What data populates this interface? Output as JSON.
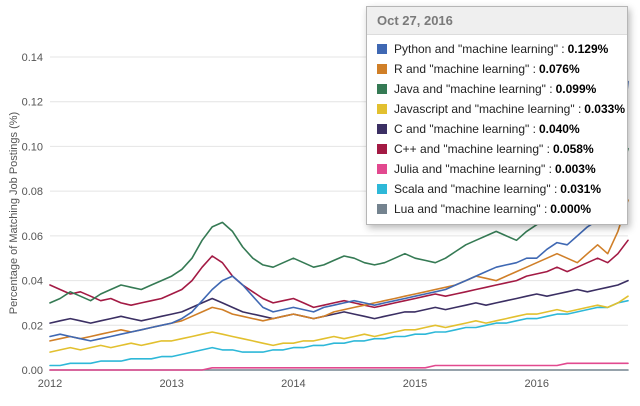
{
  "tooltip": {
    "date": "Oct 27, 2016",
    "rows": [
      {
        "label": "Python and \"machine learning\"",
        "value": "0.129%",
        "color": "#3f68b3"
      },
      {
        "label": "R and \"machine learning\"",
        "value": "0.076%",
        "color": "#d07f28"
      },
      {
        "label": "Java and \"machine learning\"",
        "value": "0.099%",
        "color": "#357a54"
      },
      {
        "label": "Javascript and \"machine learning\"",
        "value": "0.033%",
        "color": "#e2c02f"
      },
      {
        "label": "C and \"machine learning\"",
        "value": "0.040%",
        "color": "#3b2f63"
      },
      {
        "label": "C++ and \"machine learning\"",
        "value": "0.058%",
        "color": "#a31a44"
      },
      {
        "label": "Julia and \"machine learning\"",
        "value": "0.003%",
        "color": "#e2498f"
      },
      {
        "label": "Scala and \"machine learning\"",
        "value": "0.031%",
        "color": "#2eb8d8"
      },
      {
        "label": "Lua and \"machine learning\"",
        "value": "0.000%",
        "color": "#74838f"
      }
    ]
  },
  "chart_data": {
    "type": "line",
    "title": "",
    "xlabel": "",
    "ylabel": "Percentage of Matching Job Postings (%)",
    "ylim": [
      0,
      0.14
    ],
    "grid": "horizontal",
    "legend_position": "tooltip-top-right",
    "x_range_note": "monthly points, Jan 2012 through Oct 2016 (58 points)",
    "y_tick_values": [
      0,
      0.02,
      0.04,
      0.06,
      0.08,
      0.1,
      0.12,
      0.14
    ],
    "y_tick_labels": [
      "0.00",
      "0.02",
      "0.04",
      "0.06",
      "0.08",
      "0.10",
      "0.12",
      "0.14"
    ],
    "x_tick_month_index": [
      0,
      12,
      24,
      36,
      48
    ],
    "x_tick_labels": [
      "2012",
      "2013",
      "2014",
      "2015",
      "2016"
    ],
    "series": [
      {
        "name": "Python and \"machine learning\"",
        "color": "#3f68b3",
        "values": [
          0.015,
          0.016,
          0.015,
          0.014,
          0.013,
          0.014,
          0.015,
          0.016,
          0.017,
          0.018,
          0.019,
          0.02,
          0.021,
          0.023,
          0.026,
          0.031,
          0.036,
          0.04,
          0.042,
          0.038,
          0.033,
          0.028,
          0.026,
          0.027,
          0.028,
          0.027,
          0.026,
          0.028,
          0.029,
          0.03,
          0.031,
          0.03,
          0.029,
          0.03,
          0.031,
          0.032,
          0.033,
          0.034,
          0.035,
          0.036,
          0.038,
          0.04,
          0.042,
          0.044,
          0.046,
          0.047,
          0.048,
          0.05,
          0.05,
          0.054,
          0.057,
          0.056,
          0.06,
          0.064,
          0.067,
          0.071,
          0.085,
          0.129
        ]
      },
      {
        "name": "R and \"machine learning\"",
        "color": "#d07f28",
        "values": [
          0.013,
          0.014,
          0.015,
          0.014,
          0.015,
          0.016,
          0.017,
          0.018,
          0.017,
          0.018,
          0.019,
          0.02,
          0.021,
          0.022,
          0.024,
          0.026,
          0.028,
          0.027,
          0.025,
          0.024,
          0.023,
          0.022,
          0.023,
          0.024,
          0.025,
          0.024,
          0.023,
          0.024,
          0.026,
          0.027,
          0.028,
          0.029,
          0.03,
          0.031,
          0.032,
          0.033,
          0.034,
          0.035,
          0.036,
          0.037,
          0.038,
          0.04,
          0.042,
          0.041,
          0.04,
          0.042,
          0.044,
          0.046,
          0.048,
          0.05,
          0.052,
          0.05,
          0.048,
          0.052,
          0.056,
          0.052,
          0.062,
          0.076
        ]
      },
      {
        "name": "Java and \"machine learning\"",
        "color": "#357a54",
        "values": [
          0.03,
          0.032,
          0.035,
          0.033,
          0.031,
          0.034,
          0.036,
          0.038,
          0.037,
          0.036,
          0.038,
          0.04,
          0.042,
          0.045,
          0.05,
          0.058,
          0.064,
          0.066,
          0.062,
          0.055,
          0.05,
          0.047,
          0.046,
          0.048,
          0.05,
          0.048,
          0.046,
          0.047,
          0.049,
          0.051,
          0.05,
          0.048,
          0.047,
          0.048,
          0.05,
          0.052,
          0.05,
          0.049,
          0.048,
          0.05,
          0.053,
          0.056,
          0.058,
          0.06,
          0.062,
          0.06,
          0.058,
          0.062,
          0.065,
          0.068,
          0.072,
          0.07,
          0.068,
          0.072,
          0.076,
          0.074,
          0.082,
          0.099
        ]
      },
      {
        "name": "Javascript and \"machine learning\"",
        "color": "#e2c02f",
        "values": [
          0.008,
          0.009,
          0.01,
          0.009,
          0.01,
          0.011,
          0.01,
          0.011,
          0.012,
          0.011,
          0.012,
          0.013,
          0.013,
          0.014,
          0.015,
          0.016,
          0.017,
          0.016,
          0.015,
          0.014,
          0.013,
          0.012,
          0.011,
          0.012,
          0.012,
          0.013,
          0.013,
          0.014,
          0.015,
          0.014,
          0.015,
          0.016,
          0.015,
          0.016,
          0.017,
          0.018,
          0.018,
          0.019,
          0.02,
          0.019,
          0.02,
          0.021,
          0.022,
          0.021,
          0.022,
          0.023,
          0.024,
          0.025,
          0.025,
          0.026,
          0.027,
          0.026,
          0.027,
          0.028,
          0.029,
          0.028,
          0.03,
          0.033
        ]
      },
      {
        "name": "C and \"machine learning\"",
        "color": "#3b2f63",
        "values": [
          0.021,
          0.022,
          0.023,
          0.022,
          0.021,
          0.022,
          0.023,
          0.024,
          0.023,
          0.022,
          0.023,
          0.024,
          0.025,
          0.026,
          0.028,
          0.03,
          0.032,
          0.03,
          0.028,
          0.026,
          0.025,
          0.024,
          0.023,
          0.024,
          0.025,
          0.024,
          0.023,
          0.024,
          0.025,
          0.026,
          0.025,
          0.024,
          0.023,
          0.024,
          0.025,
          0.026,
          0.026,
          0.027,
          0.028,
          0.027,
          0.028,
          0.029,
          0.03,
          0.029,
          0.03,
          0.031,
          0.032,
          0.033,
          0.034,
          0.033,
          0.034,
          0.035,
          0.036,
          0.035,
          0.036,
          0.037,
          0.038,
          0.04
        ]
      },
      {
        "name": "C++ and \"machine learning\"",
        "color": "#a31a44",
        "values": [
          0.038,
          0.036,
          0.034,
          0.035,
          0.033,
          0.031,
          0.032,
          0.03,
          0.029,
          0.03,
          0.031,
          0.032,
          0.034,
          0.036,
          0.04,
          0.046,
          0.051,
          0.048,
          0.042,
          0.038,
          0.035,
          0.032,
          0.03,
          0.031,
          0.032,
          0.03,
          0.028,
          0.029,
          0.03,
          0.031,
          0.03,
          0.029,
          0.028,
          0.029,
          0.03,
          0.031,
          0.032,
          0.033,
          0.034,
          0.033,
          0.034,
          0.035,
          0.036,
          0.037,
          0.038,
          0.039,
          0.04,
          0.042,
          0.043,
          0.044,
          0.046,
          0.044,
          0.046,
          0.048,
          0.05,
          0.048,
          0.052,
          0.058
        ]
      },
      {
        "name": "Julia and \"machine learning\"",
        "color": "#e2498f",
        "values": [
          0,
          0,
          0,
          0,
          0,
          0,
          0,
          0,
          0,
          0,
          0,
          0,
          0,
          0,
          0,
          0,
          0.001,
          0.001,
          0.001,
          0.001,
          0.001,
          0.001,
          0.001,
          0.001,
          0.001,
          0.001,
          0.001,
          0.001,
          0.001,
          0.001,
          0.001,
          0.001,
          0.001,
          0.001,
          0.001,
          0.001,
          0.001,
          0.001,
          0.002,
          0.002,
          0.002,
          0.002,
          0.002,
          0.002,
          0.002,
          0.002,
          0.002,
          0.002,
          0.002,
          0.002,
          0.002,
          0.003,
          0.003,
          0.003,
          0.003,
          0.003,
          0.003,
          0.003
        ]
      },
      {
        "name": "Scala and \"machine learning\"",
        "color": "#2eb8d8",
        "values": [
          0.002,
          0.002,
          0.003,
          0.003,
          0.003,
          0.004,
          0.004,
          0.004,
          0.005,
          0.005,
          0.005,
          0.006,
          0.006,
          0.007,
          0.008,
          0.009,
          0.01,
          0.009,
          0.009,
          0.008,
          0.008,
          0.008,
          0.009,
          0.009,
          0.01,
          0.01,
          0.011,
          0.011,
          0.012,
          0.012,
          0.013,
          0.013,
          0.014,
          0.014,
          0.015,
          0.015,
          0.016,
          0.016,
          0.017,
          0.017,
          0.018,
          0.019,
          0.019,
          0.02,
          0.021,
          0.021,
          0.022,
          0.023,
          0.023,
          0.024,
          0.025,
          0.025,
          0.026,
          0.027,
          0.028,
          0.028,
          0.03,
          0.031
        ]
      },
      {
        "name": "Lua and \"machine learning\"",
        "color": "#74838f",
        "values": [
          0,
          0,
          0,
          0,
          0,
          0,
          0,
          0,
          0,
          0,
          0,
          0,
          0,
          0,
          0,
          0,
          0,
          0,
          0,
          0,
          0,
          0,
          0,
          0,
          0,
          0,
          0,
          0,
          0,
          0,
          0,
          0,
          0,
          0,
          0,
          0,
          0,
          0,
          0,
          0,
          0,
          0,
          0,
          0,
          0,
          0,
          0,
          0,
          0,
          0,
          0,
          0,
          0,
          0,
          0,
          0,
          0,
          0
        ]
      }
    ]
  }
}
